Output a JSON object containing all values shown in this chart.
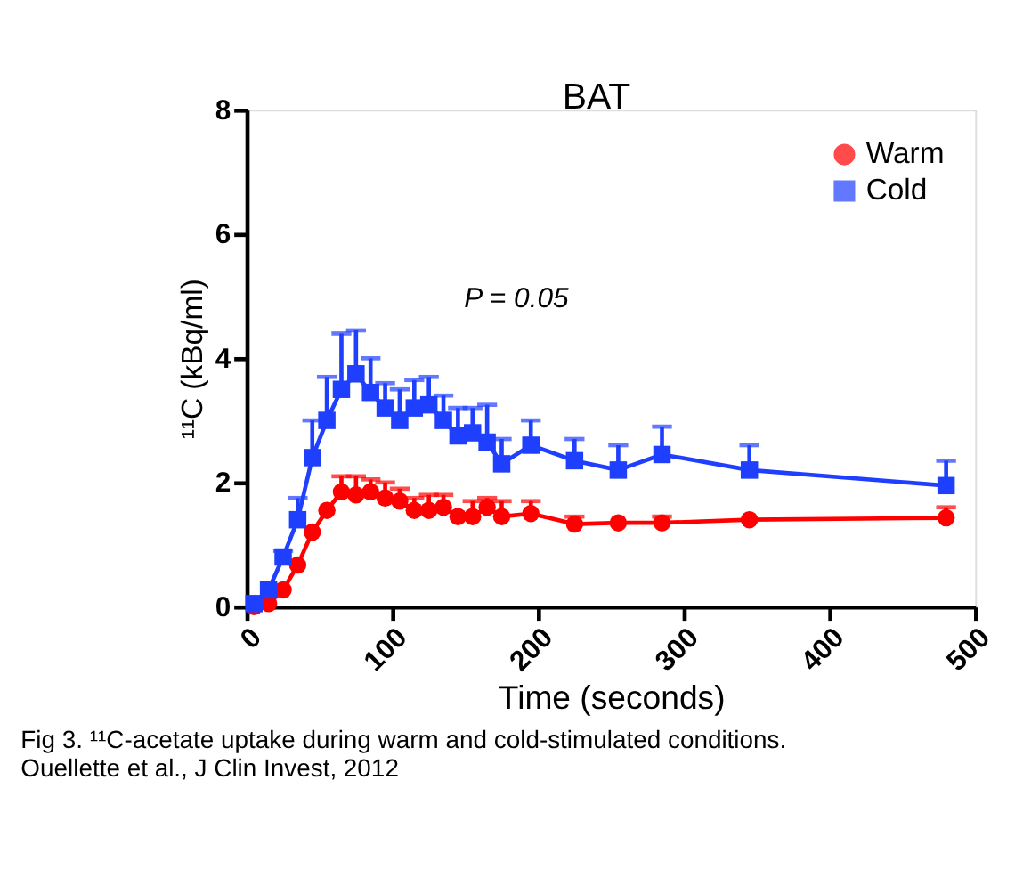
{
  "chart_data": {
    "type": "line",
    "title": "BAT",
    "xlabel": "Time (seconds)",
    "ylabel": "¹¹C (kBq/ml)",
    "x": [
      5,
      15,
      25,
      35,
      45,
      55,
      65,
      75,
      85,
      95,
      105,
      115,
      125,
      135,
      145,
      155,
      165,
      175,
      195,
      225,
      255,
      285,
      345,
      480
    ],
    "series": [
      {
        "name": "Warm",
        "color": "#ff0000",
        "marker": "circle",
        "values": [
          0,
          0.05,
          0.27,
          0.67,
          1.2,
          1.55,
          1.85,
          1.8,
          1.85,
          1.75,
          1.7,
          1.55,
          1.55,
          1.6,
          1.45,
          1.45,
          1.6,
          1.45,
          1.5,
          1.33,
          1.35,
          1.35,
          1.4,
          1.43
        ],
        "errors": [
          null,
          null,
          null,
          null,
          null,
          null,
          [
            1.85,
            2.1
          ],
          [
            1.8,
            2.1
          ],
          [
            1.85,
            2.05
          ],
          [
            1.75,
            2.0
          ],
          [
            1.7,
            1.9
          ],
          [
            1.55,
            1.75
          ],
          [
            1.55,
            1.8
          ],
          [
            1.6,
            1.8
          ],
          null,
          [
            1.45,
            1.7
          ],
          [
            1.6,
            1.75
          ],
          [
            1.45,
            1.7
          ],
          [
            1.5,
            1.7
          ],
          [
            1.33,
            1.45
          ],
          null,
          [
            1.35,
            1.45
          ],
          null,
          [
            1.43,
            1.6
          ]
        ]
      },
      {
        "name": "Cold",
        "color": "#1f3fff",
        "marker": "square",
        "values": [
          0.05,
          0.27,
          0.8,
          1.4,
          2.4,
          3.0,
          3.5,
          3.75,
          3.45,
          3.2,
          3.0,
          3.2,
          3.25,
          3.0,
          2.75,
          2.8,
          2.65,
          2.3,
          2.6,
          2.35,
          2.2,
          2.45,
          2.2,
          1.95
        ],
        "errors": [
          null,
          null,
          [
            0.8,
            0.9
          ],
          [
            1.4,
            1.75
          ],
          [
            2.4,
            3.0
          ],
          [
            3.0,
            3.7
          ],
          [
            3.5,
            4.4
          ],
          [
            3.75,
            4.45
          ],
          [
            3.45,
            4.0
          ],
          [
            3.2,
            3.6
          ],
          [
            3.0,
            3.5
          ],
          [
            3.2,
            3.65
          ],
          [
            3.25,
            3.7
          ],
          [
            3.0,
            3.4
          ],
          [
            2.75,
            3.2
          ],
          [
            2.8,
            3.2
          ],
          [
            2.65,
            3.25
          ],
          [
            2.3,
            2.7
          ],
          [
            2.6,
            3.0
          ],
          [
            2.35,
            2.7
          ],
          [
            2.2,
            2.6
          ],
          [
            2.45,
            2.9
          ],
          [
            2.2,
            2.6
          ],
          [
            1.95,
            2.35
          ]
        ]
      }
    ],
    "xlim": [
      0,
      500
    ],
    "xticks": [
      0,
      100,
      200,
      300,
      400,
      500
    ],
    "ylim": [
      0,
      8
    ],
    "yticks": [
      0,
      2,
      4,
      6,
      8
    ],
    "legend": "top right",
    "grid": false,
    "line_style": "solid",
    "annotations": [
      "P = 0.05",
      "Fig 3. ¹¹C-acetate uptake during warm and cold-stimulated conditions.  Ouellette et al., J Clin Invest, 2012"
    ]
  }
}
